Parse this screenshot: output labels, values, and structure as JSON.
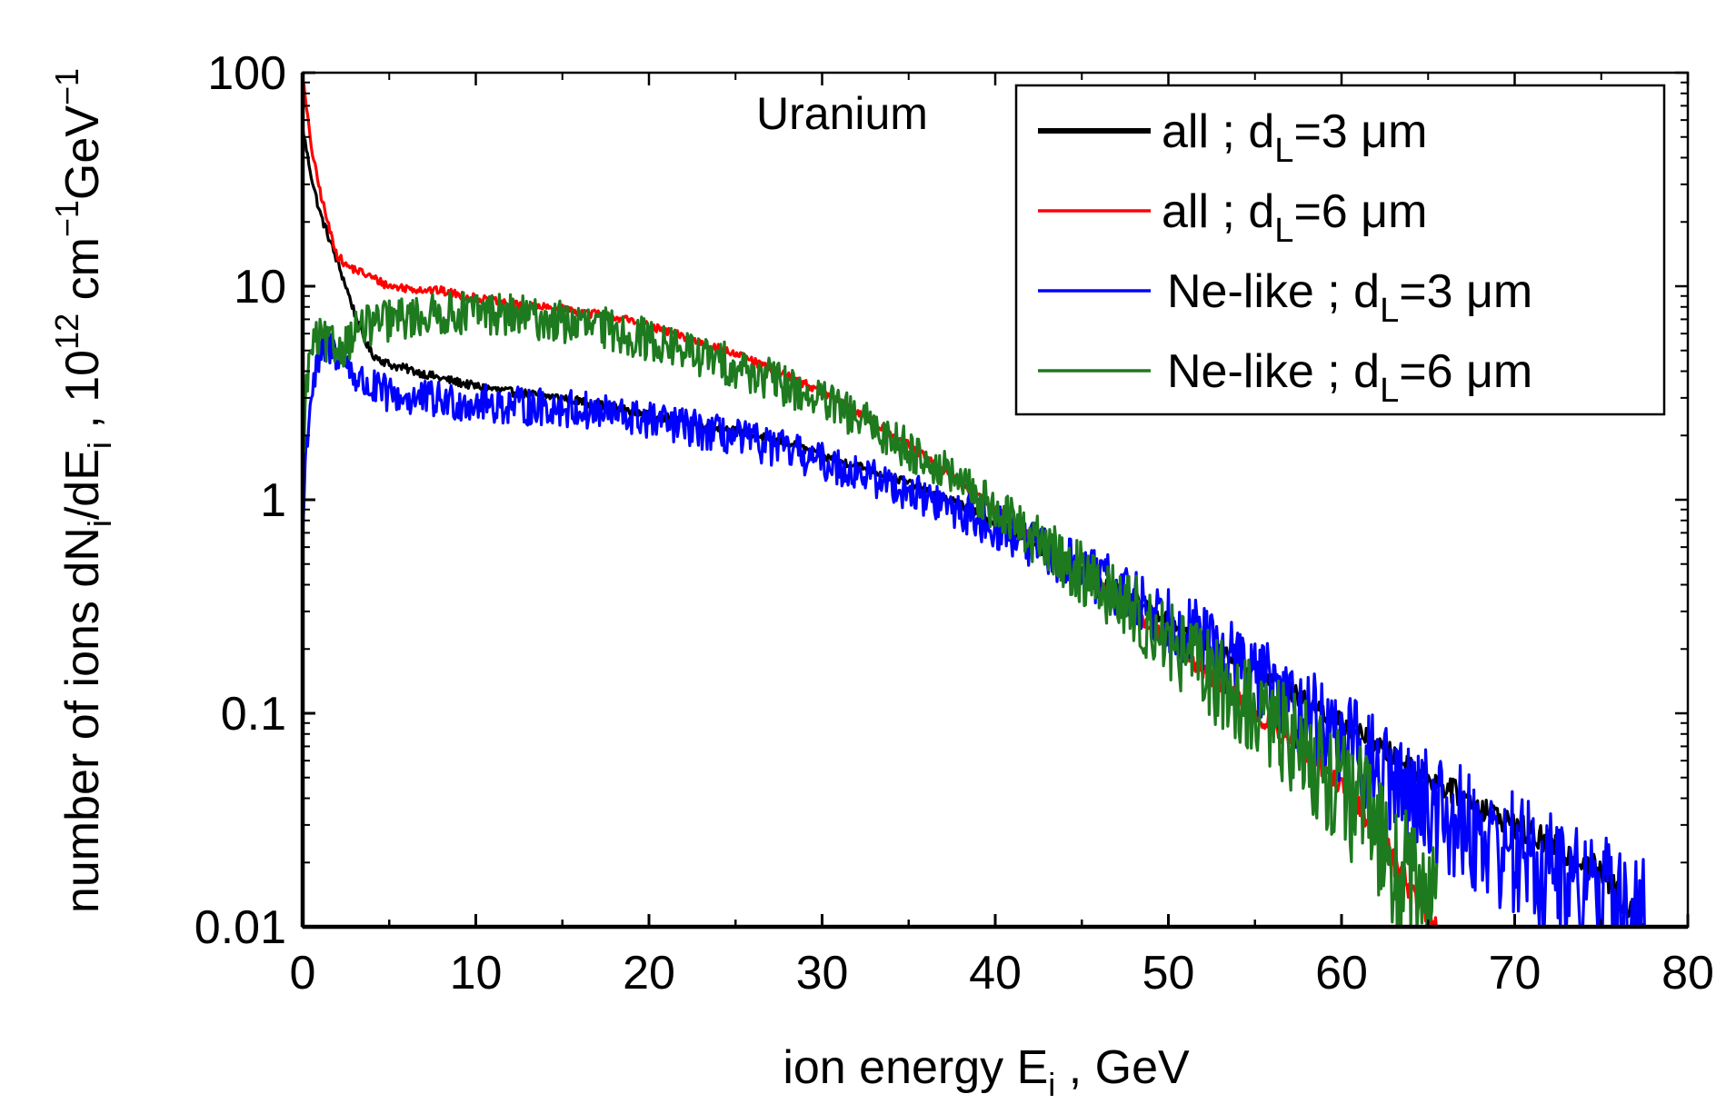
{
  "chart_data": {
    "type": "line",
    "title": "",
    "annotation": "Uranium",
    "xlabel": "ion energy E",
    "xlabel_sub": "i",
    "xlabel_unit": " , GeV",
    "ylabel": {
      "part1": "number of ions dN",
      "sub1": "i",
      "part2": "/dE",
      "sub2": "i",
      "part3": " , 10",
      "sup1": "12",
      "part4": " cm",
      "sup2": "−1",
      "part5": "GeV",
      "sup3": "−1"
    },
    "xlim": [
      0,
      80
    ],
    "ylim": [
      0.01,
      100
    ],
    "yscale": "log",
    "xticks": [
      0,
      10,
      20,
      30,
      40,
      50,
      60,
      70,
      80
    ],
    "xtick_labels": [
      "0",
      "10",
      "20",
      "30",
      "40",
      "50",
      "60",
      "70",
      "80"
    ],
    "yticks": [
      0.01,
      0.1,
      1,
      10,
      100
    ],
    "ytick_labels": [
      "0.01",
      "0.1",
      "1",
      "10",
      "100"
    ],
    "legend_position": "top-right",
    "series": [
      {
        "name": "all ; d_L=3 μm",
        "label_main": "all ; d",
        "label_sub": "L",
        "label_tail": "=3 μm",
        "color": "#000000",
        "noise": 0.02,
        "x": [
          0,
          0.3,
          0.6,
          1,
          1.5,
          2,
          2.5,
          3,
          3.5,
          4,
          5,
          6,
          8,
          10,
          12,
          15,
          18,
          20,
          22,
          25,
          28,
          30,
          32,
          35,
          38,
          40,
          42,
          45,
          48,
          50,
          55,
          60,
          65,
          70,
          75,
          77.5
        ],
        "y": [
          55,
          40,
          30,
          22,
          17,
          13,
          10,
          7.5,
          5.8,
          4.8,
          4.3,
          4.1,
          3.7,
          3.4,
          3.2,
          3.0,
          2.7,
          2.5,
          2.35,
          2.1,
          1.85,
          1.6,
          1.45,
          1.2,
          0.95,
          0.78,
          0.63,
          0.46,
          0.34,
          0.27,
          0.16,
          0.09,
          0.05,
          0.03,
          0.018,
          0.01
        ]
      },
      {
        "name": "all ; d_L=6 μm",
        "label_main": "all ; d",
        "label_sub": "L",
        "label_tail": "=6 μm",
        "color": "#ff0000",
        "noise": 0.02,
        "x": [
          0,
          0.3,
          0.6,
          1,
          1.5,
          2,
          2.5,
          3,
          4,
          5,
          6,
          8,
          10,
          12,
          15,
          18,
          20,
          22,
          25,
          28,
          30,
          32,
          35,
          38,
          40,
          42,
          45,
          48,
          50,
          52,
          55,
          58,
          60,
          62,
          64,
          65.5
        ],
        "y": [
          95,
          60,
          40,
          28,
          19,
          14,
          12.5,
          12,
          11,
          10,
          9.8,
          9.5,
          8.8,
          8.2,
          7.8,
          7.2,
          6.5,
          5.8,
          4.8,
          3.8,
          3.2,
          2.6,
          1.8,
          1.2,
          0.9,
          0.68,
          0.45,
          0.3,
          0.22,
          0.16,
          0.1,
          0.065,
          0.045,
          0.028,
          0.015,
          0.01
        ]
      },
      {
        "name": "Ne-like ; d_L=3 μm",
        "label_main": "Ne-like ; d",
        "label_sub": "L",
        "label_tail": "=3 μm",
        "color": "#0000ff",
        "noise": 0.09,
        "x": [
          0,
          0.2,
          0.5,
          1,
          1.5,
          2,
          2.5,
          3,
          3.5,
          4,
          5,
          6,
          8,
          10,
          12,
          15,
          18,
          20,
          22,
          25,
          28,
          30,
          32,
          35,
          38,
          40,
          42,
          45,
          48,
          50,
          52,
          55,
          58,
          60,
          62,
          65,
          68,
          70,
          72,
          75,
          77.5
        ],
        "y": [
          0.7,
          1.8,
          3.2,
          4.6,
          5.2,
          4.9,
          4.5,
          3.8,
          3.5,
          3.3,
          3.1,
          3.0,
          2.9,
          2.85,
          2.75,
          2.7,
          2.5,
          2.35,
          2.2,
          1.95,
          1.7,
          1.5,
          1.35,
          1.1,
          0.88,
          0.75,
          0.62,
          0.46,
          0.35,
          0.28,
          0.22,
          0.15,
          0.1,
          0.075,
          0.055,
          0.038,
          0.027,
          0.022,
          0.018,
          0.013,
          0.01
        ]
      },
      {
        "name": "Ne-like ; d_L=6 μm",
        "label_main": "Ne-like ; d",
        "label_sub": "L",
        "label_tail": "=6 μm",
        "color": "#1e7a1e",
        "noise": 0.1,
        "x": [
          0,
          0.2,
          0.5,
          1,
          1.5,
          2,
          2.5,
          3,
          4,
          5,
          6,
          8,
          10,
          12,
          15,
          18,
          20,
          22,
          25,
          28,
          30,
          32,
          35,
          38,
          40,
          42,
          45,
          48,
          50,
          52,
          55,
          58,
          60,
          62,
          64,
          65.5
        ],
        "y": [
          1.6,
          3.2,
          5.2,
          5.6,
          5.3,
          5.1,
          5.4,
          6.2,
          6.6,
          6.9,
          7.1,
          7.4,
          7.6,
          7.3,
          6.8,
          6.2,
          5.6,
          5.0,
          4.2,
          3.4,
          2.9,
          2.4,
          1.75,
          1.2,
          0.9,
          0.68,
          0.45,
          0.3,
          0.22,
          0.16,
          0.1,
          0.065,
          0.045,
          0.028,
          0.015,
          0.01
        ]
      }
    ]
  }
}
